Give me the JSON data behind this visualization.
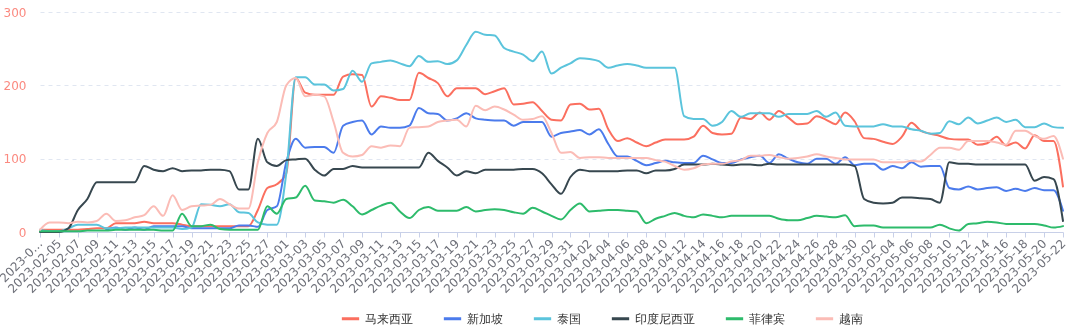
{
  "chart_data": {
    "type": "line",
    "categories": [
      "2023-0…",
      null,
      "2023-02-05",
      null,
      "2023-02-07",
      null,
      "2023-02-09",
      null,
      "2023-02-11",
      null,
      "2023-02-13",
      null,
      "2023-02-15",
      null,
      "2023-02-17",
      null,
      "2023-02-19",
      null,
      "2023-02-21",
      null,
      "2023-02-23",
      null,
      "2023-02-25",
      null,
      "2023-02-27",
      null,
      "2023-03-01",
      null,
      "2023-03-03",
      null,
      "2023-03-05",
      null,
      "2023-03-07",
      null,
      "2023-03-09",
      null,
      "2023-03-11",
      null,
      "2023-03-13",
      null,
      "2023-03-15",
      null,
      "2023-03-17",
      null,
      "2023-03-19",
      null,
      "2023-03-21",
      null,
      "2023-03-23",
      null,
      "2023-03-25",
      null,
      "2023-03-27",
      null,
      "2023-03-29",
      null,
      "2023-03-31",
      null,
      "2023-04-02",
      null,
      "2023-04-04",
      null,
      "2023-04-06",
      null,
      "2023-04-08",
      null,
      "2023-04-10",
      null,
      "2023-04-12",
      null,
      "2023-04-14",
      null,
      "2023-04-16",
      null,
      "2023-04-18",
      null,
      "2023-04-20",
      null,
      "2023-04-22",
      null,
      "2023-04-24",
      null,
      "2023-04-26",
      null,
      "2023-04-28",
      null,
      "2023-04-30",
      null,
      "2023-05-02",
      null,
      "2023-05-04",
      null,
      "2023-05-06",
      null,
      "2023-05-08",
      null,
      "2023-05-10",
      null,
      "2023-05-12",
      null,
      "2023-05-14",
      null,
      "2023-05-16",
      null,
      "2023-05-18",
      null,
      "2023-05-20",
      null,
      "2023-05-22"
    ],
    "series": [
      {
        "name": "马来西亚",
        "color": "#fb6f5f",
        "values": [
          3,
          3,
          3,
          3,
          3,
          4,
          5,
          5,
          12,
          12,
          12,
          14,
          12,
          12,
          12,
          10,
          8,
          8,
          8,
          8,
          8,
          8,
          8,
          30,
          60,
          65,
          80,
          210,
          190,
          187,
          187,
          187,
          212,
          215,
          214,
          171,
          185,
          183,
          180,
          180,
          217,
          210,
          203,
          185,
          196,
          196,
          196,
          188,
          192,
          196,
          174,
          175,
          177,
          165,
          153,
          152,
          174,
          175,
          167,
          168,
          140,
          124,
          128,
          122,
          117,
          122,
          126,
          126,
          126,
          130,
          145,
          135,
          133,
          134,
          156,
          154,
          163,
          153,
          165,
          156,
          147,
          148,
          158,
          153,
          147,
          163,
          151,
          128,
          127,
          123,
          120,
          130,
          149,
          138,
          134,
          131,
          127,
          126,
          126,
          119,
          121,
          130,
          118,
          122,
          114,
          132,
          124,
          124,
          62
        ]
      },
      {
        "name": "新加坡",
        "color": "#4b7bec",
        "values": [
          null,
          null,
          null,
          null,
          null,
          null,
          null,
          3,
          6,
          3,
          6,
          3,
          8,
          8,
          8,
          8,
          5,
          5,
          5,
          5,
          5,
          9,
          9,
          7,
          30,
          35,
          95,
          127,
          115,
          116,
          116,
          108,
          145,
          150,
          152,
          133,
          144,
          142,
          142,
          145,
          169,
          162,
          161,
          152,
          155,
          162,
          155,
          153,
          152,
          152,
          145,
          150,
          150,
          150,
          130,
          135,
          137,
          139,
          133,
          140,
          120,
          103,
          103,
          97,
          91,
          94,
          97,
          95,
          94,
          94,
          104,
          99,
          94,
          94,
          99,
          102,
          104,
          94,
          106,
          100,
          95,
          93,
          100,
          100,
          93,
          102,
          91,
          93,
          93,
          85,
          90,
          87,
          95,
          89,
          90,
          90,
          60,
          58,
          62,
          58,
          60,
          61,
          56,
          59,
          56,
          60,
          57,
          57,
          29
        ]
      },
      {
        "name": "泰国",
        "color": "#5bc4dc",
        "values": [
          3,
          1,
          1,
          5,
          10,
          10,
          10,
          5,
          5,
          6,
          6,
          6,
          6,
          6,
          6,
          4,
          6,
          38,
          37,
          35,
          38,
          27,
          26,
          13,
          10,
          10,
          80,
          211,
          211,
          201,
          201,
          193,
          195,
          220,
          205,
          230,
          232,
          234,
          230,
          226,
          240,
          232,
          233,
          229,
          234,
          255,
          273,
          269,
          268,
          251,
          246,
          242,
          233,
          246,
          216,
          224,
          230,
          237,
          236,
          233,
          224,
          227,
          229,
          227,
          224,
          224,
          224,
          224,
          158,
          154,
          154,
          145,
          150,
          165,
          157,
          162,
          162,
          162,
          157,
          161,
          161,
          161,
          165,
          157,
          163,
          145,
          144,
          144,
          144,
          147,
          144,
          144,
          140,
          138,
          134,
          135,
          151,
          147,
          156,
          148,
          152,
          156,
          150,
          153,
          143,
          143,
          148,
          143,
          142
        ]
      },
      {
        "name": "印度尼西亚",
        "color": "#37474f",
        "values": [
          0,
          0,
          0,
          5,
          30,
          45,
          68,
          68,
          68,
          68,
          68,
          90,
          85,
          83,
          87,
          83,
          84,
          84,
          85,
          85,
          83,
          58,
          58,
          127,
          95,
          90,
          98,
          99,
          100,
          85,
          77,
          86,
          86,
          90,
          88,
          88,
          88,
          88,
          88,
          88,
          88,
          108,
          97,
          88,
          77,
          83,
          80,
          85,
          85,
          85,
          85,
          86,
          86,
          80,
          65,
          52,
          75,
          85,
          83,
          83,
          83,
          83,
          84,
          84,
          80,
          84,
          84,
          86,
          92,
          92,
          92,
          93,
          92,
          91,
          92,
          92,
          91,
          93,
          92,
          92,
          92,
          92,
          92,
          92,
          92,
          92,
          90,
          45,
          40,
          39,
          40,
          47,
          47,
          46,
          45,
          40,
          95,
          93,
          93,
          92,
          92,
          92,
          92,
          92,
          92,
          70,
          75,
          72,
          15
        ]
      },
      {
        "name": "菲律宾",
        "color": "#2dbb6b",
        "values": [
          1,
          1,
          1,
          1,
          1,
          2,
          2,
          2,
          3,
          3,
          3,
          3,
          3,
          2,
          2,
          25,
          8,
          8,
          10,
          4,
          3,
          3,
          3,
          3,
          35,
          25,
          45,
          47,
          63,
          43,
          42,
          40,
          44,
          35,
          24,
          30,
          36,
          40,
          28,
          19,
          30,
          34,
          29,
          29,
          29,
          34,
          28,
          30,
          31,
          30,
          27,
          25,
          33,
          28,
          22,
          17,
          30,
          39,
          28,
          29,
          30,
          30,
          29,
          28,
          12,
          18,
          22,
          26,
          22,
          20,
          24,
          22,
          20,
          22,
          22,
          22,
          22,
          22,
          18,
          16,
          16,
          19,
          22,
          21,
          20,
          23,
          8,
          9,
          9,
          6,
          6,
          6,
          6,
          6,
          6,
          10,
          5,
          2,
          11,
          12,
          14,
          13,
          11,
          11,
          11,
          11,
          9,
          6,
          8
        ]
      },
      {
        "name": "越南",
        "color": "#fbbcb6",
        "values": [
          3,
          13,
          13,
          12,
          14,
          13,
          15,
          25,
          15,
          16,
          20,
          23,
          35,
          22,
          50,
          30,
          35,
          36,
          37,
          45,
          38,
          32,
          32,
          95,
          135,
          150,
          200,
          210,
          185,
          187,
          185,
          150,
          108,
          103,
          105,
          117,
          115,
          118,
          117,
          142,
          143,
          144,
          150,
          152,
          153,
          144,
          172,
          166,
          171,
          167,
          160,
          153,
          154,
          158,
          135,
          108,
          109,
          101,
          102,
          102,
          101,
          101,
          101,
          101,
          101,
          98,
          96,
          90,
          85,
          87,
          92,
          93,
          93,
          96,
          98,
          104,
          104,
          105,
          102,
          100,
          101,
          103,
          106,
          103,
          101,
          99,
          99,
          99,
          99,
          95,
          95,
          95,
          97,
          96,
          105,
          115,
          115,
          112,
          124,
          124,
          124,
          122,
          119,
          138,
          138,
          131,
          127,
          131,
          100
        ]
      }
    ],
    "ylim": [
      0,
      300
    ],
    "yticks": [
      0,
      100,
      200,
      300
    ],
    "grid": "y",
    "legend": "bottom"
  }
}
